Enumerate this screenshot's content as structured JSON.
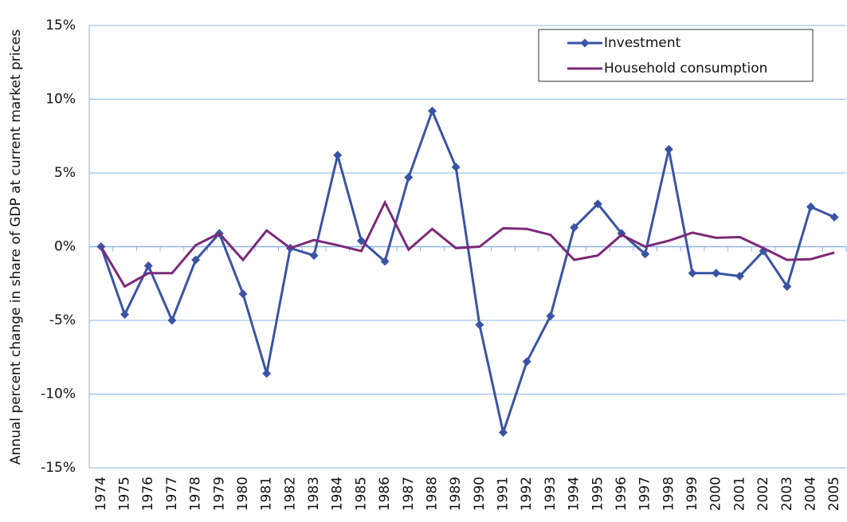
{
  "chart_data": {
    "type": "line",
    "y_label": "Annual percent change in share of GDP at current market prices",
    "categories": [
      "1974",
      "1975",
      "1976",
      "1977",
      "1978",
      "1979",
      "1980",
      "1981",
      "1982",
      "1983",
      "1984",
      "1985",
      "1986",
      "1987",
      "1988",
      "1989",
      "1990",
      "1991",
      "1992",
      "1993",
      "1994",
      "1995",
      "1996",
      "1997",
      "1998",
      "1999",
      "2000",
      "2001",
      "2002",
      "2003",
      "2004",
      "2005"
    ],
    "series": [
      {
        "name": "Investment",
        "color": "#3a53a4",
        "marker": "diamond",
        "values": [
          0,
          -4.6,
          -1.3,
          -5.0,
          -0.9,
          0.9,
          -3.2,
          -8.6,
          -0.1,
          -0.6,
          6.2,
          0.4,
          -1.0,
          4.7,
          9.2,
          5.4,
          -5.3,
          -12.6,
          -7.8,
          -4.7,
          1.3,
          2.9,
          0.9,
          -0.5,
          6.6,
          -1.8,
          -1.8,
          -2.0,
          -0.3,
          -2.7,
          2.7,
          2.0
        ]
      },
      {
        "name": "Household consumption",
        "color": "#7b2a78",
        "marker": "none",
        "values": [
          0,
          -2.7,
          -1.8,
          -1.8,
          0.1,
          0.9,
          -0.9,
          1.1,
          -0.1,
          0.45,
          0.1,
          -0.3,
          3.0,
          -0.2,
          1.2,
          -0.1,
          0,
          1.25,
          1.2,
          0.8,
          -0.9,
          -0.6,
          0.8,
          0,
          0.4,
          0.95,
          0.6,
          0.65,
          -0.1,
          -0.9,
          -0.85,
          -0.4
        ]
      }
    ],
    "ylim": [
      -15,
      15
    ],
    "yticks": [
      {
        "value": -15,
        "label": "-15%"
      },
      {
        "value": -10,
        "label": "-10%"
      },
      {
        "value": -5,
        "label": "-5%"
      },
      {
        "value": 0,
        "label": "0%"
      },
      {
        "value": 5,
        "label": "5%"
      },
      {
        "value": 10,
        "label": "10%"
      },
      {
        "value": 15,
        "label": "15%"
      }
    ],
    "grid": true,
    "legend": "top-right"
  }
}
